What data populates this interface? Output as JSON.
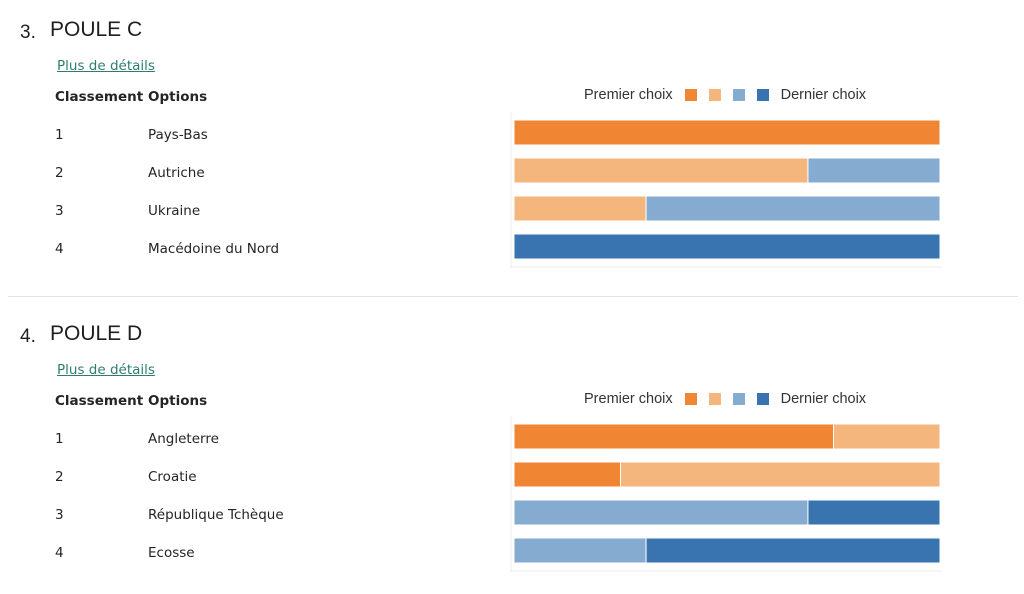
{
  "colors": {
    "rank1": "#f08634",
    "rank2": "#f4b67c",
    "rank3": "#85abd0",
    "rank4": "#3a74b0",
    "link": "#2e7d6e"
  },
  "sections": [
    {
      "number": "3.",
      "title": "POULE C",
      "details_link": "Plus de détails",
      "headers": {
        "rank": "Classement",
        "options": "Options"
      },
      "legend": {
        "first": "Premier choix",
        "last": "Dernier choix"
      },
      "rows": [
        {
          "rank": "1",
          "option": "Pays-Bas"
        },
        {
          "rank": "2",
          "option": "Autriche"
        },
        {
          "rank": "3",
          "option": "Ukraine"
        },
        {
          "rank": "4",
          "option": "Macédoine du Nord"
        }
      ],
      "chart_data": {
        "type": "bar",
        "orientation": "horizontal",
        "stacked": true,
        "unit": "percent",
        "categories": [
          "Pays-Bas",
          "Autriche",
          "Ukraine",
          "Macédoine du Nord"
        ],
        "series": [
          {
            "values": [
              100,
              0,
              0,
              0
            ]
          },
          {
            "values": [
              0,
              69,
              31,
              0
            ]
          },
          {
            "values": [
              0,
              31,
              69,
              0
            ]
          },
          {
            "values": [
              0,
              0,
              0,
              100
            ]
          }
        ]
      }
    },
    {
      "number": "4.",
      "title": "POULE D",
      "details_link": "Plus de détails",
      "headers": {
        "rank": "Classement",
        "options": "Options"
      },
      "legend": {
        "first": "Premier choix",
        "last": "Dernier choix"
      },
      "rows": [
        {
          "rank": "1",
          "option": "Angleterre"
        },
        {
          "rank": "2",
          "option": "Croatie"
        },
        {
          "rank": "3",
          "option": "République Tchèque"
        },
        {
          "rank": "4",
          "option": "Ecosse"
        }
      ],
      "chart_data": {
        "type": "bar",
        "orientation": "horizontal",
        "stacked": true,
        "unit": "percent",
        "categories": [
          "Angleterre",
          "Croatie",
          "République Tchèque",
          "Ecosse"
        ],
        "series": [
          {
            "values": [
              75,
              25,
              0,
              0
            ]
          },
          {
            "values": [
              25,
              75,
              0,
              0
            ]
          },
          {
            "values": [
              0,
              0,
              69,
              31
            ]
          },
          {
            "values": [
              0,
              0,
              31,
              69
            ]
          }
        ]
      }
    }
  ]
}
